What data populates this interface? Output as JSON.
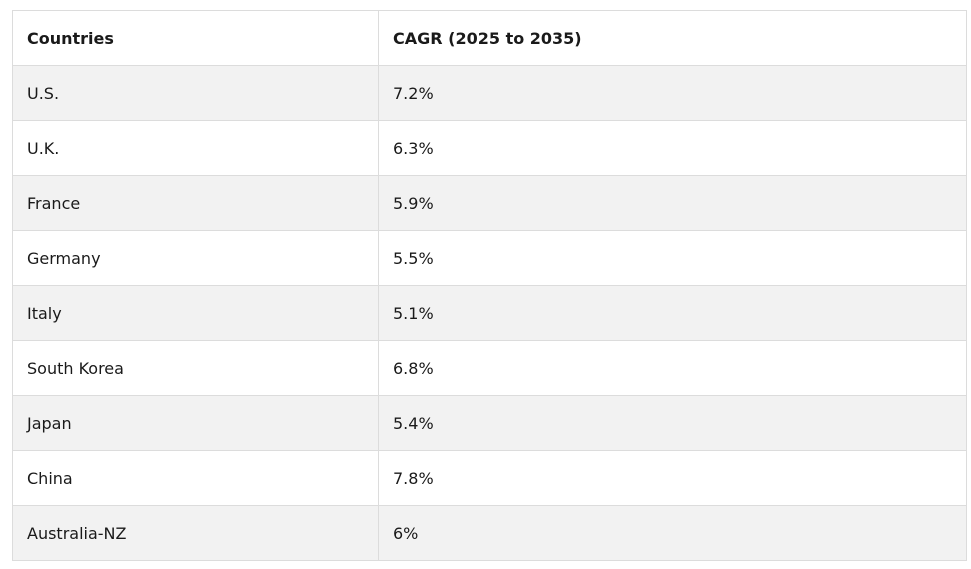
{
  "table": {
    "headers": [
      "Countries",
      "CAGR (2025 to 2035)"
    ],
    "rows": [
      [
        "U.S.",
        "7.2%"
      ],
      [
        "U.K.",
        "6.3%"
      ],
      [
        "France",
        "5.9%"
      ],
      [
        "Germany",
        "5.5%"
      ],
      [
        "Italy",
        "5.1%"
      ],
      [
        "South Korea",
        "6.8%"
      ],
      [
        "Japan",
        "5.4%"
      ],
      [
        "China",
        "7.8%"
      ],
      [
        "Australia-NZ",
        "6%"
      ]
    ]
  }
}
